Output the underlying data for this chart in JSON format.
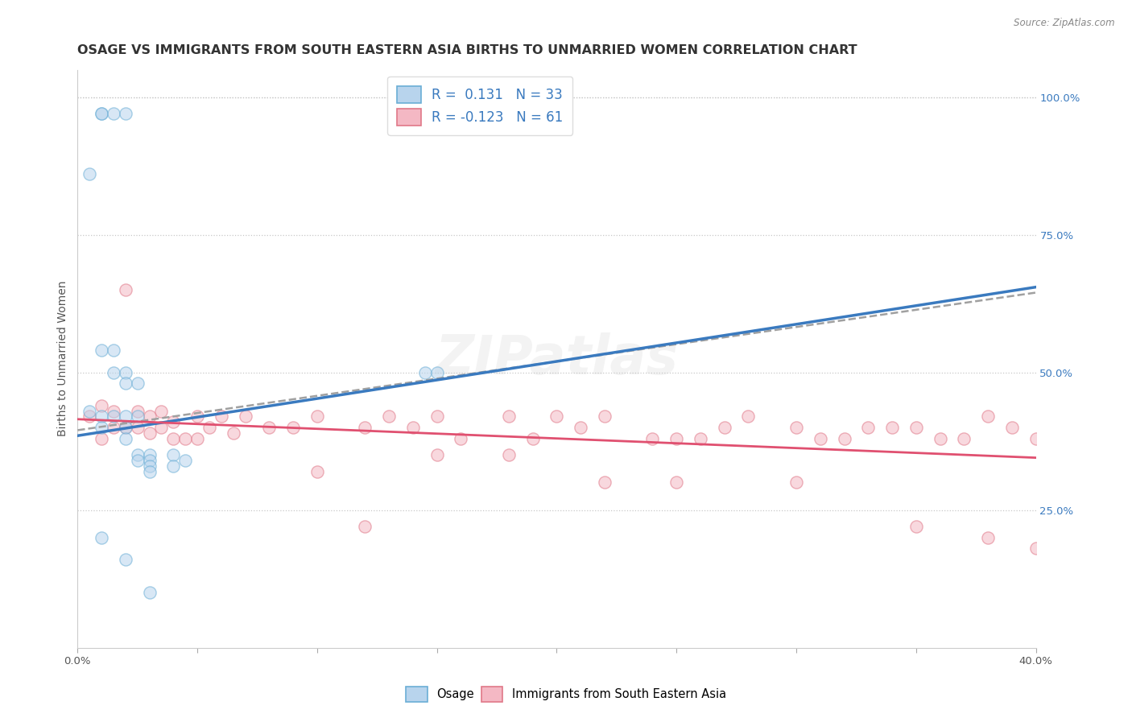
{
  "title": "OSAGE VS IMMIGRANTS FROM SOUTH EASTERN ASIA BIRTHS TO UNMARRIED WOMEN CORRELATION CHART",
  "source": "Source: ZipAtlas.com",
  "ylabel": "Births to Unmarried Women",
  "right_yticks": [
    "100.0%",
    "75.0%",
    "50.0%",
    "25.0%"
  ],
  "right_ytick_vals": [
    1.0,
    0.75,
    0.5,
    0.25
  ],
  "legend_blue_label": "Osage",
  "legend_pink_label": "Immigrants from South Eastern Asia",
  "legend_r_blue": "0.131",
  "legend_n_blue": "33",
  "legend_r_pink": "-0.123",
  "legend_n_pink": "61",
  "blue_fill_color": "#b8d4ed",
  "pink_fill_color": "#f4b8c4",
  "blue_edge_color": "#6aaed6",
  "pink_edge_color": "#e07888",
  "blue_line_color": "#3a7abf",
  "pink_line_color": "#e05070",
  "gray_line_color": "#a0a0a0",
  "osage_x": [
    0.01,
    0.01,
    0.015,
    0.02,
    0.005,
    0.01,
    0.015,
    0.015,
    0.02,
    0.02,
    0.025,
    0.005,
    0.01,
    0.01,
    0.015,
    0.02,
    0.02,
    0.025,
    0.02,
    0.025,
    0.025,
    0.03,
    0.03,
    0.03,
    0.03,
    0.04,
    0.04,
    0.045,
    0.145,
    0.15,
    0.01,
    0.02,
    0.03
  ],
  "osage_y": [
    0.97,
    0.97,
    0.97,
    0.97,
    0.86,
    0.54,
    0.54,
    0.5,
    0.5,
    0.48,
    0.48,
    0.43,
    0.42,
    0.4,
    0.42,
    0.42,
    0.4,
    0.42,
    0.38,
    0.35,
    0.34,
    0.35,
    0.34,
    0.33,
    0.32,
    0.35,
    0.33,
    0.34,
    0.5,
    0.5,
    0.2,
    0.16,
    0.1
  ],
  "imm_x": [
    0.005,
    0.01,
    0.01,
    0.015,
    0.015,
    0.02,
    0.02,
    0.025,
    0.025,
    0.03,
    0.03,
    0.035,
    0.035,
    0.04,
    0.04,
    0.045,
    0.05,
    0.05,
    0.055,
    0.06,
    0.065,
    0.07,
    0.08,
    0.09,
    0.1,
    0.12,
    0.13,
    0.14,
    0.15,
    0.16,
    0.18,
    0.19,
    0.2,
    0.21,
    0.22,
    0.24,
    0.25,
    0.26,
    0.27,
    0.28,
    0.3,
    0.31,
    0.32,
    0.33,
    0.34,
    0.35,
    0.36,
    0.37,
    0.38,
    0.39,
    0.4,
    0.1,
    0.15,
    0.12,
    0.18,
    0.22,
    0.25,
    0.3,
    0.35,
    0.38,
    0.4
  ],
  "imm_y": [
    0.42,
    0.44,
    0.38,
    0.4,
    0.43,
    0.4,
    0.65,
    0.43,
    0.4,
    0.42,
    0.39,
    0.43,
    0.4,
    0.38,
    0.41,
    0.38,
    0.42,
    0.38,
    0.4,
    0.42,
    0.39,
    0.42,
    0.4,
    0.4,
    0.42,
    0.4,
    0.42,
    0.4,
    0.42,
    0.38,
    0.42,
    0.38,
    0.42,
    0.4,
    0.42,
    0.38,
    0.38,
    0.38,
    0.4,
    0.42,
    0.4,
    0.38,
    0.38,
    0.4,
    0.4,
    0.4,
    0.38,
    0.38,
    0.42,
    0.4,
    0.38,
    0.32,
    0.35,
    0.22,
    0.35,
    0.3,
    0.3,
    0.3,
    0.22,
    0.2,
    0.18
  ],
  "xlim": [
    0.0,
    0.4
  ],
  "ylim": [
    0.0,
    1.05
  ],
  "blue_line_x": [
    0.0,
    0.4
  ],
  "blue_line_y": [
    0.385,
    0.655
  ],
  "pink_line_x": [
    0.0,
    0.4
  ],
  "pink_line_y": [
    0.415,
    0.345
  ],
  "gray_line_x": [
    0.0,
    0.4
  ],
  "gray_line_y": [
    0.395,
    0.645
  ],
  "background_color": "#ffffff",
  "title_fontsize": 11.5,
  "axis_label_fontsize": 10,
  "tick_fontsize": 9.5,
  "dot_size": 120,
  "dot_alpha": 0.55
}
